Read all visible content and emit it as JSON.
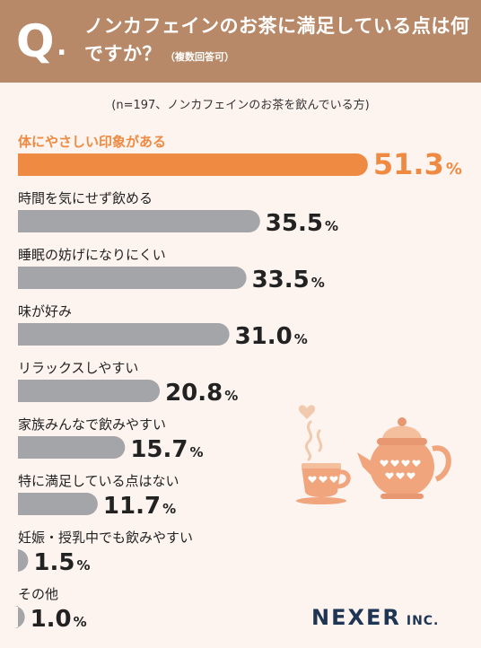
{
  "header": {
    "q_mark": "Q",
    "q_dot": ".",
    "question": "ノンカフェインのお茶に満足している点は何ですか？",
    "note": "（複数回答可）"
  },
  "sample_note": "(n=197、ノンカフェインのお茶を飲んでいる方)",
  "colors": {
    "highlight": "#ef8a42",
    "bar": "#a4a5a8",
    "header": "#b88968",
    "background": "#fdf4f0"
  },
  "chart_data": {
    "type": "bar",
    "orientation": "horizontal",
    "categories": [
      "体にやさしい印象がある",
      "時間を気にせず飲める",
      "睡眠の妨げになりにくい",
      "味が好み",
      "リラックスしやすい",
      "家族みんなで飲みやすい",
      "特に満足している点はない",
      "妊娠・授乳中でも飲みやすい",
      "その他"
    ],
    "values": [
      51.3,
      35.5,
      33.5,
      31.0,
      20.8,
      15.7,
      11.7,
      1.5,
      1.0
    ],
    "value_labels": [
      "51.3",
      "35.5",
      "33.5",
      "31.0",
      "20.8",
      "15.7",
      "11.7",
      "1.5",
      "1.0"
    ],
    "unit": "%",
    "highlight_index": 0
  },
  "logo": {
    "main": "NEXER",
    "suffix": "INC."
  }
}
